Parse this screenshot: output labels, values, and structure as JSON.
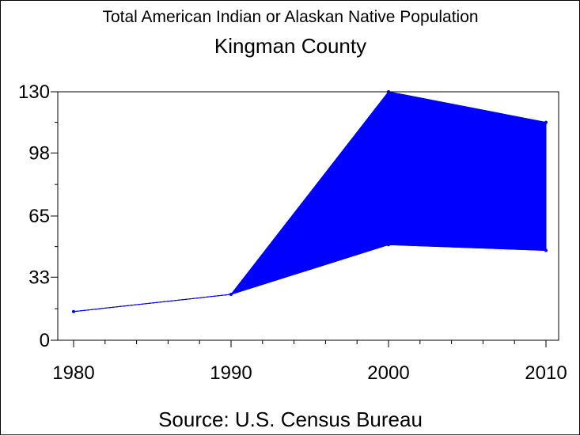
{
  "chart_data": {
    "type": "area",
    "title": "Total American Indian or Alaskan Native Population",
    "subtitle": "Kingman County",
    "footnote": "Source: U.S. Census Bureau",
    "x": [
      1980,
      1990,
      2000,
      2010
    ],
    "xticks": [
      "1980",
      "1990",
      "2000",
      "2010"
    ],
    "yticks": [
      "0",
      "33",
      "65",
      "98",
      "130"
    ],
    "ylim": [
      0,
      130
    ],
    "series": [
      {
        "role": "lower",
        "values": [
          15,
          24,
          50,
          47
        ]
      },
      {
        "role": "upper",
        "values": [
          15,
          24,
          130,
          114
        ]
      }
    ],
    "colors": {
      "fill": "#0000ff",
      "line": "#0000ff",
      "axis": "#000000"
    },
    "grid": false
  }
}
